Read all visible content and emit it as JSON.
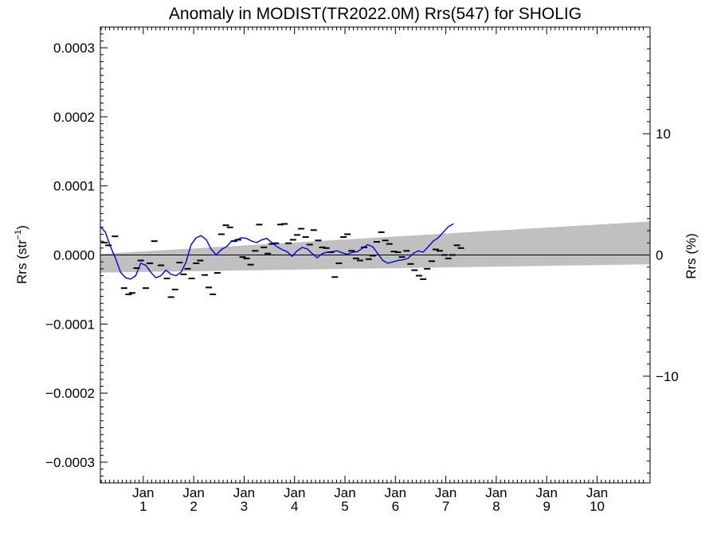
{
  "chart_data": {
    "type": "line",
    "title": "Anomaly in MODIST(TR2022.0M) Rrs(547) for SHOLIG",
    "ylabel_left": "Rrs (str",
    "ylabel_left_sup": "−1",
    "ylabel_left_tail": ")",
    "ylabel_right": "Rrs (%)",
    "ylim_left": [
      -0.00033,
      0.00033
    ],
    "ylim_right": [
      -18.8,
      18.8
    ],
    "xlim": [
      0.15,
      11.05
    ],
    "left_ticks": [
      {
        "value": 0.0003,
        "label": "0.0003"
      },
      {
        "value": 0.0002,
        "label": "0.0002"
      },
      {
        "value": 0.0001,
        "label": "0.0001"
      },
      {
        "value": 0.0,
        "label": "0.0000"
      },
      {
        "value": -0.0001,
        "label": "−0.0001"
      },
      {
        "value": -0.0002,
        "label": "−0.0002"
      },
      {
        "value": -0.0003,
        "label": "−0.0003"
      }
    ],
    "right_ticks": [
      {
        "value": 10,
        "label": "10"
      },
      {
        "value": 0,
        "label": "0"
      },
      {
        "value": -10,
        "label": "−10"
      }
    ],
    "x_ticks": [
      {
        "value": 1,
        "label": "Jan",
        "sub": "1"
      },
      {
        "value": 2,
        "label": "Jan",
        "sub": "2"
      },
      {
        "value": 3,
        "label": "Jan",
        "sub": "3"
      },
      {
        "value": 4,
        "label": "Jan",
        "sub": "4"
      },
      {
        "value": 5,
        "label": "Jan",
        "sub": "5"
      },
      {
        "value": 6,
        "label": "Jan",
        "sub": "6"
      },
      {
        "value": 7,
        "label": "Jan",
        "sub": "7"
      },
      {
        "value": 8,
        "label": "Jan",
        "sub": "8"
      },
      {
        "value": 9,
        "label": "Jan",
        "sub": "9"
      },
      {
        "value": 10,
        "label": "Jan",
        "sub": "10"
      }
    ],
    "uncertainty_band": {
      "color": "#c0c0c0",
      "x": [
        0.15,
        11.05
      ],
      "upper": [
        1.5e-06,
        4.85e-05
      ],
      "lower": [
        -2.55e-05,
        -1.35e-05
      ]
    },
    "zero_line": {
      "value": 0.0,
      "color": "#000000"
    },
    "series": [
      {
        "name": "",
        "kind": "monthly",
        "color": "#000000",
        "points": [
          [
            0.23,
            1.8e-05
          ],
          [
            0.31,
            1.4e-05
          ],
          [
            0.44,
            2.7e-05
          ],
          [
            0.62,
            -4.8e-05
          ],
          [
            0.71,
            -5.7e-05
          ],
          [
            0.78,
            -5.5e-05
          ],
          [
            0.87,
            -1.9e-05
          ],
          [
            0.95,
            -8e-06
          ],
          [
            1.05,
            -4.8e-05
          ],
          [
            1.13,
            -1.2e-05
          ],
          [
            1.22,
            2e-05
          ],
          [
            1.35,
            -1.5e-05
          ],
          [
            1.47,
            -3.4e-05
          ],
          [
            1.55,
            -6.1e-05
          ],
          [
            1.63,
            -5e-05
          ],
          [
            1.72,
            -1.1e-05
          ],
          [
            1.8,
            -2.8e-05
          ],
          [
            1.88,
            -2e-05
          ],
          [
            1.96,
            -3.4e-05
          ],
          [
            2.05,
            -1.2e-05
          ],
          [
            2.13,
            -8e-06
          ],
          [
            2.22,
            -2.9e-05
          ],
          [
            2.3,
            -4.7e-05
          ],
          [
            2.38,
            -5.7e-05
          ],
          [
            2.47,
            -2.6e-05
          ],
          [
            2.55,
            3e-05
          ],
          [
            2.64,
            4.3e-05
          ],
          [
            2.72,
            4e-05
          ],
          [
            2.8,
            2e-05
          ],
          [
            2.88,
            2.2e-05
          ],
          [
            2.97,
            -3e-06
          ],
          [
            3.05,
            -5e-06
          ],
          [
            3.13,
            -1.4e-05
          ],
          [
            3.22,
            6e-06
          ],
          [
            3.3,
            4.4e-05
          ],
          [
            3.39,
            1.1e-05
          ],
          [
            3.47,
            2e-06
          ],
          [
            3.55,
            1.6e-05
          ],
          [
            3.63,
            1.7e-05
          ],
          [
            3.72,
            4.4e-05
          ],
          [
            3.8,
            4.5e-05
          ],
          [
            3.88,
            1.7e-05
          ],
          [
            3.97,
            2.2e-05
          ],
          [
            4.05,
            2.9e-05
          ],
          [
            4.13,
            3.8e-05
          ],
          [
            4.22,
            2.6e-05
          ],
          [
            4.3,
            1.5e-05
          ],
          [
            4.38,
            3.6e-05
          ],
          [
            4.47,
            2.1e-05
          ],
          [
            4.55,
            1.1e-05
          ],
          [
            4.63,
            1e-05
          ],
          [
            4.72,
            4e-06
          ],
          [
            4.8,
            -3.2e-05
          ],
          [
            4.88,
            -1.2e-05
          ],
          [
            4.97,
            2.6e-05
          ],
          [
            5.05,
            3e-05
          ],
          [
            5.13,
            6e-06
          ],
          [
            5.22,
            -5e-06
          ],
          [
            5.3,
            -8e-06
          ],
          [
            5.38,
            1.1e-05
          ],
          [
            5.47,
            -6e-06
          ],
          [
            5.55,
            -1e-06
          ],
          [
            5.63,
            1.9e-05
          ],
          [
            5.72,
            3.3e-05
          ],
          [
            5.8,
            2.1e-05
          ],
          [
            5.88,
            1.6e-05
          ],
          [
            5.97,
            5e-06
          ],
          [
            6.05,
            4e-06
          ],
          [
            6.13,
            -3e-06
          ],
          [
            6.22,
            6e-06
          ],
          [
            6.3,
            -1.3e-05
          ],
          [
            6.38,
            -2.2e-05
          ],
          [
            6.47,
            -3e-05
          ],
          [
            6.55,
            -3.5e-05
          ],
          [
            6.63,
            -2e-05
          ],
          [
            6.72,
            -9e-06
          ],
          [
            6.8,
            8e-06
          ],
          [
            6.88,
            6e-06
          ],
          [
            6.97,
            0.0
          ],
          [
            7.05,
            -5e-06
          ],
          [
            7.13,
            0.0
          ],
          [
            7.22,
            1.4e-05
          ],
          [
            7.3,
            1e-05
          ]
        ]
      },
      {
        "name": "",
        "kind": "smoothed",
        "color": "#0000dd",
        "points": [
          [
            0.15,
            4.1e-05
          ],
          [
            0.25,
            3.3e-05
          ],
          [
            0.35,
            1.2e-05
          ],
          [
            0.45,
            -5e-06
          ],
          [
            0.55,
            -2.5e-05
          ],
          [
            0.65,
            -3.3e-05
          ],
          [
            0.75,
            -3.5e-05
          ],
          [
            0.85,
            -3e-05
          ],
          [
            0.95,
            -1.2e-05
          ],
          [
            1.05,
            -1.5e-05
          ],
          [
            1.15,
            -2.5e-05
          ],
          [
            1.25,
            -3.3e-05
          ],
          [
            1.35,
            -3e-05
          ],
          [
            1.45,
            -2.2e-05
          ],
          [
            1.55,
            -2.8e-05
          ],
          [
            1.65,
            -3e-05
          ],
          [
            1.75,
            -2.5e-05
          ],
          [
            1.85,
            -1e-05
          ],
          [
            1.95,
            1.5e-05
          ],
          [
            2.05,
            2.5e-05
          ],
          [
            2.15,
            2.8e-05
          ],
          [
            2.25,
            2.2e-05
          ],
          [
            2.35,
            8e-06
          ],
          [
            2.45,
            0.0
          ],
          [
            2.55,
            8e-06
          ],
          [
            2.65,
            1.2e-05
          ],
          [
            2.75,
            2e-05
          ],
          [
            2.85,
            2.2e-05
          ],
          [
            2.95,
            2.5e-05
          ],
          [
            3.05,
            2.4e-05
          ],
          [
            3.15,
            2e-05
          ],
          [
            3.25,
            1.8e-05
          ],
          [
            3.35,
            2.2e-05
          ],
          [
            3.45,
            2.4e-05
          ],
          [
            3.55,
            1.8e-05
          ],
          [
            3.65,
            1.2e-05
          ],
          [
            3.75,
            8e-06
          ],
          [
            3.85,
            5e-06
          ],
          [
            3.95,
            -2e-06
          ],
          [
            4.05,
            6e-06
          ],
          [
            4.15,
            1.1e-05
          ],
          [
            4.25,
            9e-06
          ],
          [
            4.35,
            2e-06
          ],
          [
            4.45,
            -4e-06
          ],
          [
            4.55,
            2e-06
          ],
          [
            4.65,
            4e-06
          ],
          [
            4.75,
            5e-06
          ],
          [
            4.85,
            6e-06
          ],
          [
            4.95,
            3e-06
          ],
          [
            5.05,
            1e-06
          ],
          [
            5.15,
            4e-06
          ],
          [
            5.25,
            5e-06
          ],
          [
            5.35,
            1e-05
          ],
          [
            5.45,
            1.5e-05
          ],
          [
            5.55,
            1.2e-05
          ],
          [
            5.65,
            2e-06
          ],
          [
            5.75,
            -8e-06
          ],
          [
            5.85,
            -1.2e-05
          ],
          [
            5.95,
            -1e-05
          ],
          [
            6.05,
            -8e-06
          ],
          [
            6.15,
            -7e-06
          ],
          [
            6.25,
            -5e-06
          ],
          [
            6.35,
            2e-06
          ],
          [
            6.45,
            6e-06
          ],
          [
            6.55,
            4e-06
          ],
          [
            6.65,
            1.2e-05
          ],
          [
            6.75,
            2e-05
          ],
          [
            6.85,
            2.5e-05
          ],
          [
            6.95,
            3.3e-05
          ],
          [
            7.05,
            4.1e-05
          ],
          [
            7.15,
            4.5e-05
          ]
        ]
      }
    ]
  }
}
